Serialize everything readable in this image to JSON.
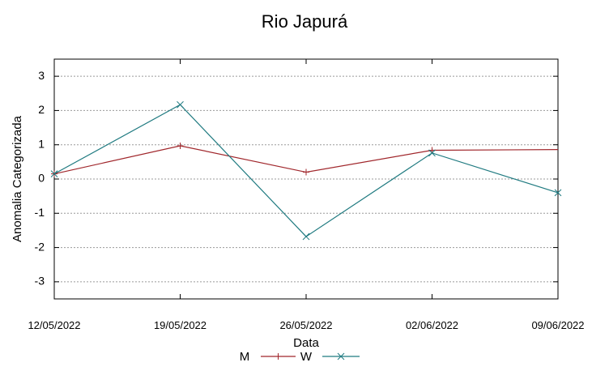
{
  "chart_data": {
    "type": "line",
    "title": "Rio Japurá",
    "xlabel": "Data",
    "ylabel": "Anomalia Categorizada",
    "categories": [
      "12/05/2022",
      "19/05/2022",
      "26/05/2022",
      "02/06/2022",
      "09/06/2022"
    ],
    "ylim": [
      -3.5,
      3.5
    ],
    "yticks": [
      3,
      2,
      1,
      0,
      -1,
      -2,
      -3
    ],
    "grid": true,
    "legend_position": "bottom-center",
    "series": [
      {
        "name": "M",
        "color": "#a0262b",
        "marker": "plus",
        "values": [
          0.15,
          0.97,
          0.2,
          0.84,
          0.86
        ],
        "marker_indices": [
          0,
          1,
          2,
          3
        ]
      },
      {
        "name": "W",
        "color": "#1f7a80",
        "marker": "cross",
        "values": [
          0.15,
          2.17,
          -1.68,
          0.76,
          -0.4
        ],
        "marker_indices": [
          0,
          1,
          2,
          3,
          4
        ]
      }
    ]
  }
}
